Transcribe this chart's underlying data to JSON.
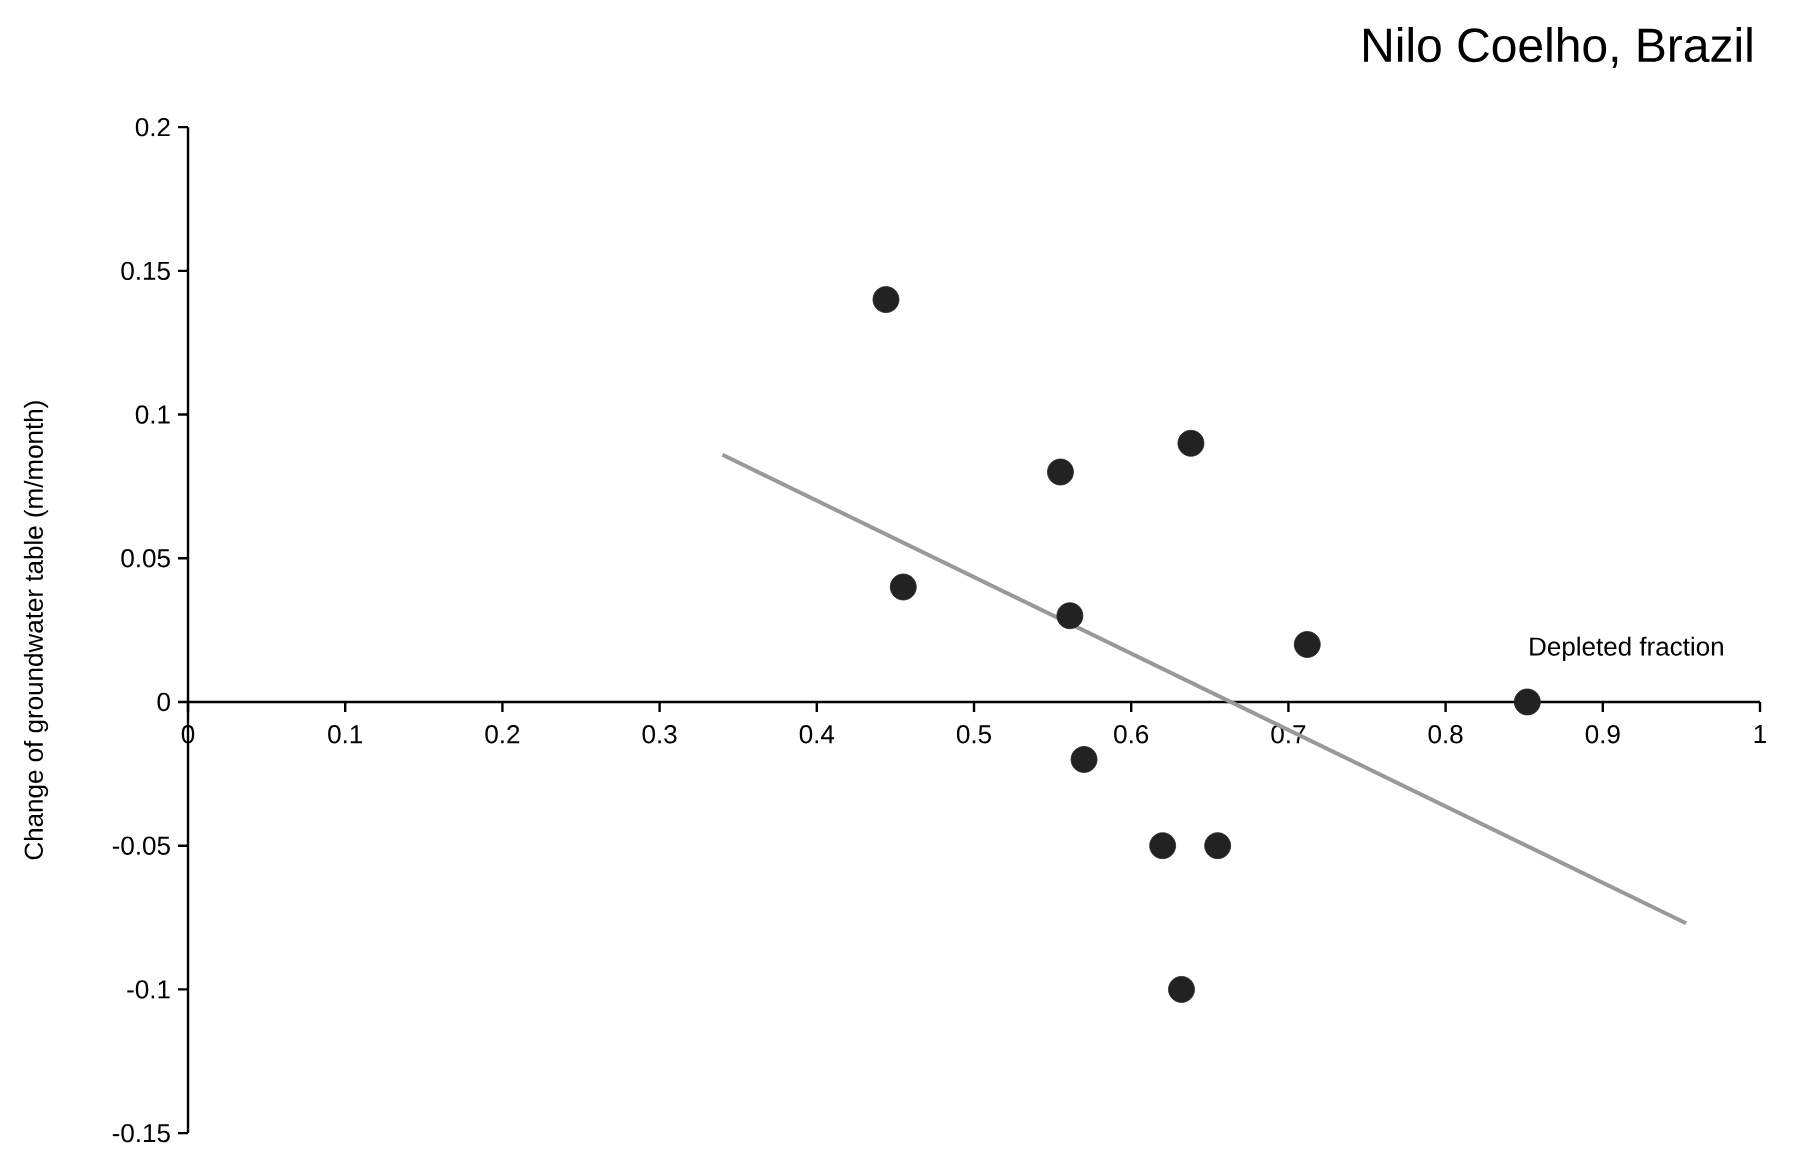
{
  "chart_data": {
    "type": "scatter",
    "title": "Nilo Coelho, Brazil",
    "xlabel": "Depleted fraction",
    "ylabel": "Change of groundwater table (m/month)",
    "xlim": [
      0,
      1
    ],
    "ylim": [
      -0.15,
      0.2
    ],
    "xticks": [
      0,
      0.1,
      0.2,
      0.3,
      0.4,
      0.5,
      0.6,
      0.7,
      0.8,
      0.9,
      1
    ],
    "yticks": [
      -0.15,
      -0.1,
      -0.05,
      0,
      0.05,
      0.1,
      0.15,
      0.2
    ],
    "grid": false,
    "series": [
      {
        "marker": "circle",
        "color": "#222222",
        "x": [
          0.444,
          0.455,
          0.555,
          0.638,
          0.561,
          0.57,
          0.62,
          0.655,
          0.632,
          0.712,
          0.852
        ],
        "values": [
          0.14,
          0.04,
          0.08,
          0.09,
          0.03,
          -0.02,
          -0.05,
          -0.05,
          -0.1,
          0.02,
          0.0
        ]
      },
      {
        "type": "line",
        "marker": "none",
        "color": "#999999",
        "x": [
          0.34,
          0.953
        ],
        "values": [
          0.086,
          -0.077
        ]
      }
    ]
  }
}
